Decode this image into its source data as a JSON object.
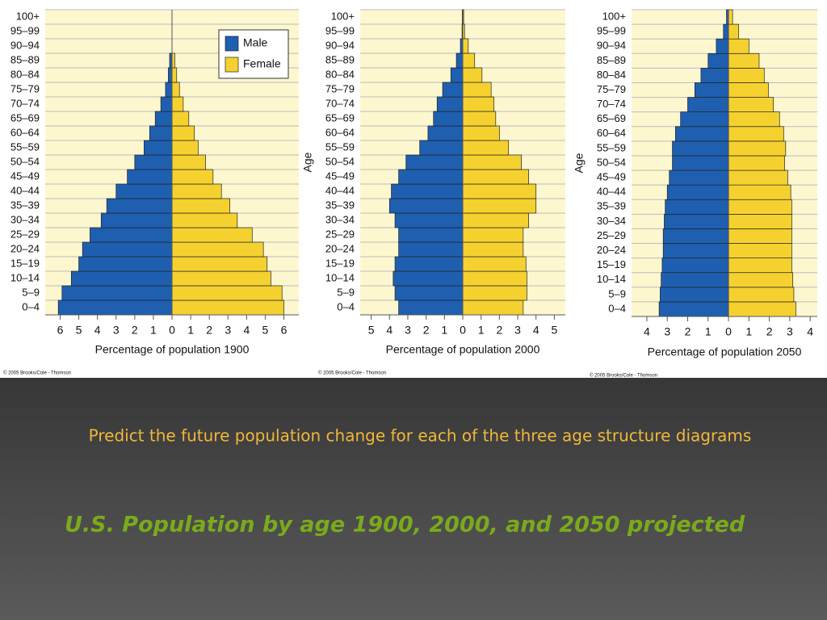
{
  "slide": {
    "caption": "Predict the future population change for each of the three age structure diagrams",
    "title": "U.S. Population by age 1900, 2000, and 2050 projected"
  },
  "chart_data": [
    {
      "type": "pyramid",
      "xlabel": "Percentage of population 1900",
      "credit": "© 2005 Brooks/Cole - Thomson",
      "legend": "upper right",
      "grid": true,
      "categories": [
        "0–4",
        "5–9",
        "10–14",
        "15–19",
        "20–24",
        "25–29",
        "30–34",
        "35–39",
        "40–44",
        "45–49",
        "50–54",
        "55–59",
        "60–64",
        "65–69",
        "70–74",
        "75–79",
        "80–84",
        "85–89",
        "90–94",
        "95–99",
        "100+"
      ],
      "series": [
        {
          "name": "Male",
          "color": "#1f5fb0",
          "values": [
            6.1,
            5.9,
            5.4,
            5.0,
            4.8,
            4.4,
            3.8,
            3.5,
            3.0,
            2.4,
            2.0,
            1.5,
            1.2,
            0.9,
            0.6,
            0.35,
            0.2,
            0.13,
            0,
            0,
            0
          ]
        },
        {
          "name": "Female",
          "color": "#f5d130",
          "values": [
            6.0,
            5.9,
            5.3,
            5.1,
            4.9,
            4.3,
            3.5,
            3.1,
            2.65,
            2.2,
            1.8,
            1.4,
            1.2,
            0.9,
            0.6,
            0.4,
            0.25,
            0.15,
            0,
            0,
            0
          ]
        }
      ],
      "xlim": [
        -6.8,
        6.8
      ],
      "xticks": [
        {
          "value": -6,
          "label": "6"
        },
        {
          "value": -5,
          "label": "5"
        },
        {
          "value": -4,
          "label": "4"
        },
        {
          "value": -3,
          "label": "3"
        },
        {
          "value": -2,
          "label": "2"
        },
        {
          "value": -1,
          "label": "1"
        },
        0,
        1,
        2,
        3,
        4,
        5,
        6
      ]
    },
    {
      "type": "pyramid",
      "xlabel": "Percentage of population 2000",
      "ylabel": "Age",
      "credit": "© 2005 Brooks/Cole - Thomson",
      "grid": true,
      "categories": [
        "0–4",
        "5–9",
        "10–14",
        "15–19",
        "20–24",
        "25–29",
        "30–34",
        "35–39",
        "40–44",
        "45–49",
        "50–54",
        "55–59",
        "60–64",
        "65–69",
        "70–74",
        "75–79",
        "80–84",
        "85–89",
        "90–94",
        "95–99",
        "100+"
      ],
      "series": [
        {
          "name": "Male",
          "color": "#1f5fb0",
          "values": [
            3.5,
            3.7,
            3.8,
            3.7,
            3.5,
            3.5,
            3.7,
            4.0,
            3.9,
            3.5,
            3.1,
            2.35,
            1.9,
            1.6,
            1.4,
            1.1,
            0.65,
            0.35,
            0.13,
            0.04,
            0.03
          ]
        },
        {
          "name": "Female",
          "color": "#f5d130",
          "values": [
            3.3,
            3.5,
            3.5,
            3.45,
            3.3,
            3.3,
            3.6,
            4.0,
            4.0,
            3.6,
            3.2,
            2.5,
            2.0,
            1.8,
            1.7,
            1.55,
            1.05,
            0.65,
            0.3,
            0.1,
            0.05
          ]
        }
      ],
      "xlim": [
        -5.6,
        5.6
      ],
      "xticks": [
        {
          "value": -5,
          "label": "5"
        },
        {
          "value": -4,
          "label": "4"
        },
        {
          "value": -3,
          "label": "3"
        },
        {
          "value": -2,
          "label": "2"
        },
        {
          "value": -1,
          "label": "1"
        },
        0,
        1,
        2,
        3,
        4,
        5
      ]
    },
    {
      "type": "pyramid",
      "xlabel": "Percentage of population 2050",
      "ylabel": "Age",
      "credit": "© 2005 Brooks/Cole - Thomson",
      "grid": true,
      "categories": [
        "0–4",
        "5–9",
        "10–14",
        "15–19",
        "20–24",
        "25–29",
        "30–34",
        "35–39",
        "40–44",
        "45–49",
        "50–54",
        "55–59",
        "60–64",
        "65–69",
        "70–74",
        "75–79",
        "80–84",
        "85–89",
        "90–94",
        "95–99",
        "100+"
      ],
      "series": [
        {
          "name": "Male",
          "color": "#1f5fb0",
          "values": [
            3.4,
            3.35,
            3.3,
            3.25,
            3.2,
            3.2,
            3.15,
            3.1,
            3.0,
            2.9,
            2.75,
            2.75,
            2.6,
            2.35,
            2.0,
            1.65,
            1.35,
            1.0,
            0.6,
            0.25,
            0.1
          ]
        },
        {
          "name": "Female",
          "color": "#f5d130",
          "values": [
            3.3,
            3.2,
            3.15,
            3.1,
            3.1,
            3.1,
            3.1,
            3.1,
            3.05,
            2.9,
            2.75,
            2.8,
            2.7,
            2.5,
            2.2,
            1.95,
            1.75,
            1.5,
            1.0,
            0.5,
            0.2
          ]
        }
      ],
      "xlim": [
        -4.75,
        4.35
      ],
      "xticks": [
        {
          "value": -4,
          "label": "4"
        },
        {
          "value": -3,
          "label": "3"
        },
        {
          "value": -2,
          "label": "2"
        },
        {
          "value": -1,
          "label": "1"
        },
        0,
        1,
        2,
        3,
        4
      ]
    }
  ]
}
